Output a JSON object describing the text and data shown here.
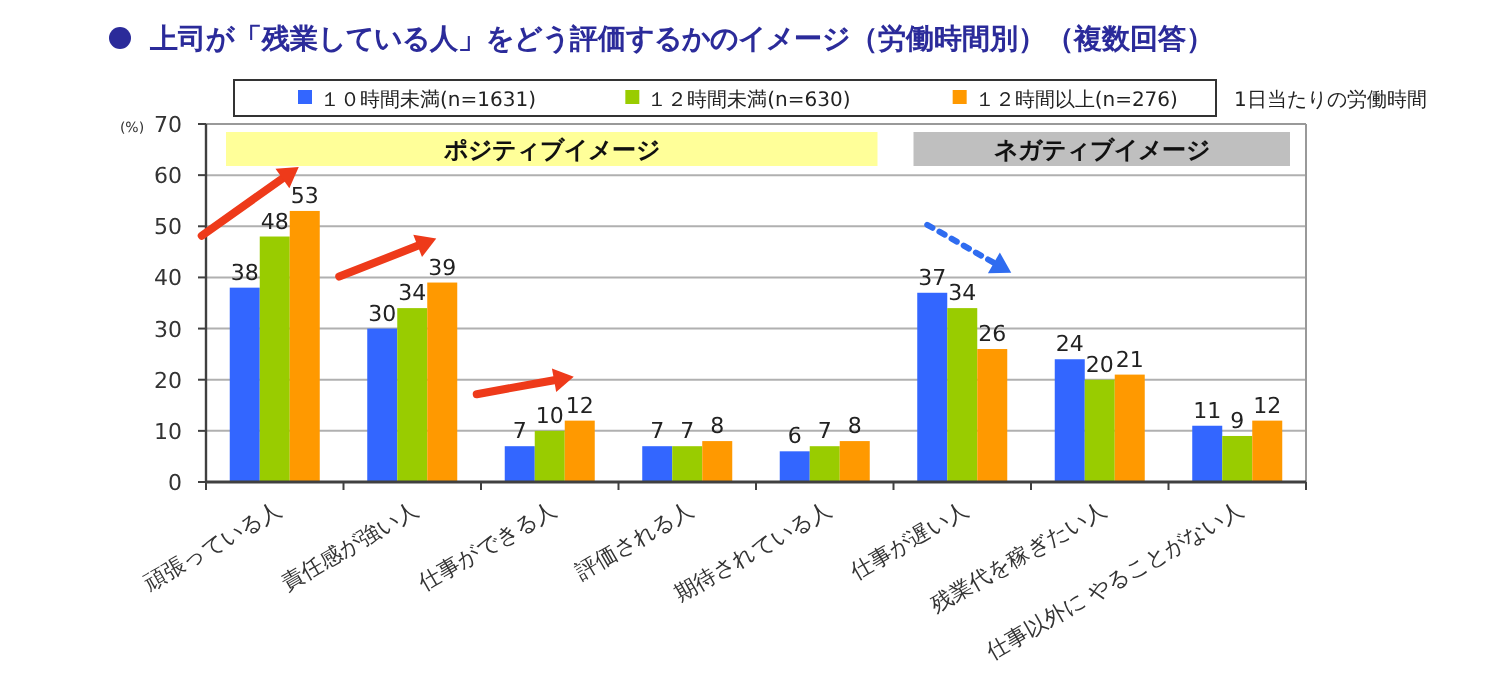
{
  "chart_data": {
    "type": "bar",
    "title": "上司が「残業している人」をどう評価するかのイメージ（労働時間別）（複数回答）",
    "ylabel": "(%)",
    "legend_title": "1日当たりの労働時間",
    "categories": [
      "頑張っている人",
      "責任感が強い人",
      "仕事ができる人",
      "評価される人",
      "期待されている人",
      "仕事が遅い人",
      "残業代を稼ぎたい人",
      "仕事以外に やることがない人"
    ],
    "series": [
      {
        "name": "１０時間未満(n=1631)",
        "color": "#3366ff",
        "values": [
          38,
          30,
          7,
          7,
          6,
          37,
          24,
          11
        ]
      },
      {
        "name": "１２時間未満(n=630)",
        "color": "#99cc00",
        "values": [
          48,
          34,
          10,
          7,
          7,
          34,
          20,
          9
        ]
      },
      {
        "name": "１２時間以上(n=276)",
        "color": "#ff9900",
        "values": [
          53,
          39,
          12,
          8,
          8,
          26,
          21,
          12
        ]
      }
    ],
    "bands": [
      {
        "axis": "x",
        "from": "頑張っている人",
        "to": "期待されている人",
        "label": "ポジティブイメージ",
        "color": "#ffff99"
      },
      {
        "axis": "x",
        "from": "仕事が遅い人",
        "to": "仕事以外に やることがない人",
        "label": "ネガティブイメージ",
        "color": "#bfbfbf"
      }
    ],
    "ylim": [
      0,
      70
    ],
    "yticks": [
      0,
      10,
      20,
      30,
      40,
      50,
      60,
      70
    ],
    "grid": "y",
    "legend": "top",
    "data_labels": true
  }
}
